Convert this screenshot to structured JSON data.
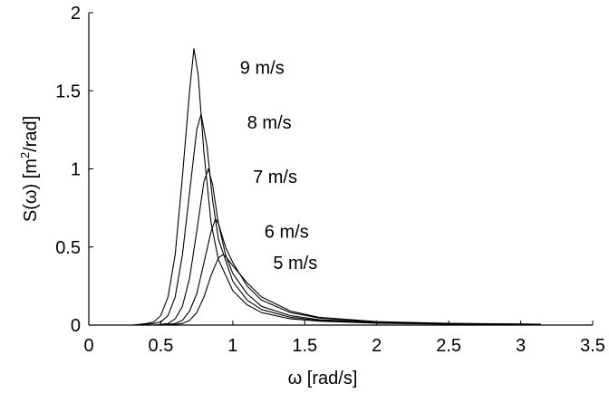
{
  "chart_data": {
    "type": "line",
    "xlabel": "ω [rad/s]",
    "ylabel_pre": "S(ω) [m",
    "ylabel_sup": "2",
    "ylabel_post": "/rad]",
    "xlim": [
      0,
      3.5
    ],
    "ylim": [
      0,
      2
    ],
    "xticks": [
      0,
      0.5,
      1,
      1.5,
      2,
      2.5,
      3,
      3.5
    ],
    "xtick_labels": [
      "0",
      "0.5",
      "1",
      "1.5",
      "2",
      "2.5",
      "3",
      "3.5"
    ],
    "yticks": [
      0,
      0.5,
      1,
      1.5,
      2
    ],
    "ytick_labels": [
      "0",
      "0.5",
      "1",
      "1.5",
      "2"
    ],
    "grid": false,
    "series": [
      {
        "name": "9 m/s",
        "x": [
          0.2,
          0.3,
          0.4,
          0.45,
          0.5,
          0.55,
          0.6,
          0.65,
          0.7,
          0.73,
          0.76,
          0.8,
          0.85,
          0.9,
          1.0,
          1.1,
          1.2,
          1.4,
          1.6,
          2.0,
          2.5,
          3.14
        ],
        "y": [
          0,
          0,
          0.01,
          0.02,
          0.06,
          0.18,
          0.45,
          0.95,
          1.5,
          1.77,
          1.6,
          1.1,
          0.65,
          0.42,
          0.22,
          0.13,
          0.08,
          0.04,
          0.025,
          0.012,
          0.006,
          0.003
        ],
        "label_at": [
          1.05,
          1.65
        ]
      },
      {
        "name": "8 m/s",
        "x": [
          0.2,
          0.35,
          0.45,
          0.5,
          0.55,
          0.6,
          0.65,
          0.7,
          0.75,
          0.78,
          0.82,
          0.86,
          0.9,
          1.0,
          1.1,
          1.2,
          1.4,
          1.6,
          2.0,
          2.5,
          3.14
        ],
        "y": [
          0,
          0,
          0.01,
          0.02,
          0.06,
          0.18,
          0.45,
          0.85,
          1.25,
          1.35,
          1.15,
          0.8,
          0.55,
          0.28,
          0.16,
          0.1,
          0.05,
          0.03,
          0.015,
          0.007,
          0.003
        ],
        "label_at": [
          1.1,
          1.3
        ]
      },
      {
        "name": "7 m/s",
        "x": [
          0.3,
          0.45,
          0.55,
          0.6,
          0.65,
          0.7,
          0.75,
          0.8,
          0.83,
          0.86,
          0.9,
          0.95,
          1.0,
          1.1,
          1.2,
          1.4,
          1.6,
          2.0,
          2.5,
          3.14
        ],
        "y": [
          0,
          0,
          0.01,
          0.04,
          0.12,
          0.3,
          0.6,
          0.92,
          1.0,
          0.9,
          0.65,
          0.45,
          0.33,
          0.2,
          0.12,
          0.06,
          0.035,
          0.017,
          0.008,
          0.004
        ],
        "label_at": [
          1.14,
          0.95
        ]
      },
      {
        "name": "6 m/s",
        "x": [
          0.3,
          0.5,
          0.6,
          0.65,
          0.7,
          0.75,
          0.8,
          0.85,
          0.88,
          0.9,
          0.95,
          1.0,
          1.1,
          1.2,
          1.4,
          1.6,
          2.0,
          2.5,
          3.14
        ],
        "y": [
          0,
          0,
          0.01,
          0.03,
          0.09,
          0.2,
          0.4,
          0.6,
          0.68,
          0.65,
          0.5,
          0.4,
          0.25,
          0.16,
          0.08,
          0.045,
          0.02,
          0.01,
          0.005
        ],
        "label_at": [
          1.22,
          0.6
        ]
      },
      {
        "name": "5 m/s",
        "x": [
          0.3,
          0.55,
          0.65,
          0.7,
          0.75,
          0.8,
          0.85,
          0.9,
          0.93,
          0.95,
          1.0,
          1.1,
          1.2,
          1.4,
          1.6,
          2.0,
          2.5,
          3.14
        ],
        "y": [
          0,
          0,
          0.01,
          0.03,
          0.08,
          0.18,
          0.32,
          0.43,
          0.45,
          0.44,
          0.38,
          0.27,
          0.18,
          0.09,
          0.05,
          0.022,
          0.011,
          0.005
        ],
        "label_at": [
          1.28,
          0.4
        ]
      }
    ]
  }
}
